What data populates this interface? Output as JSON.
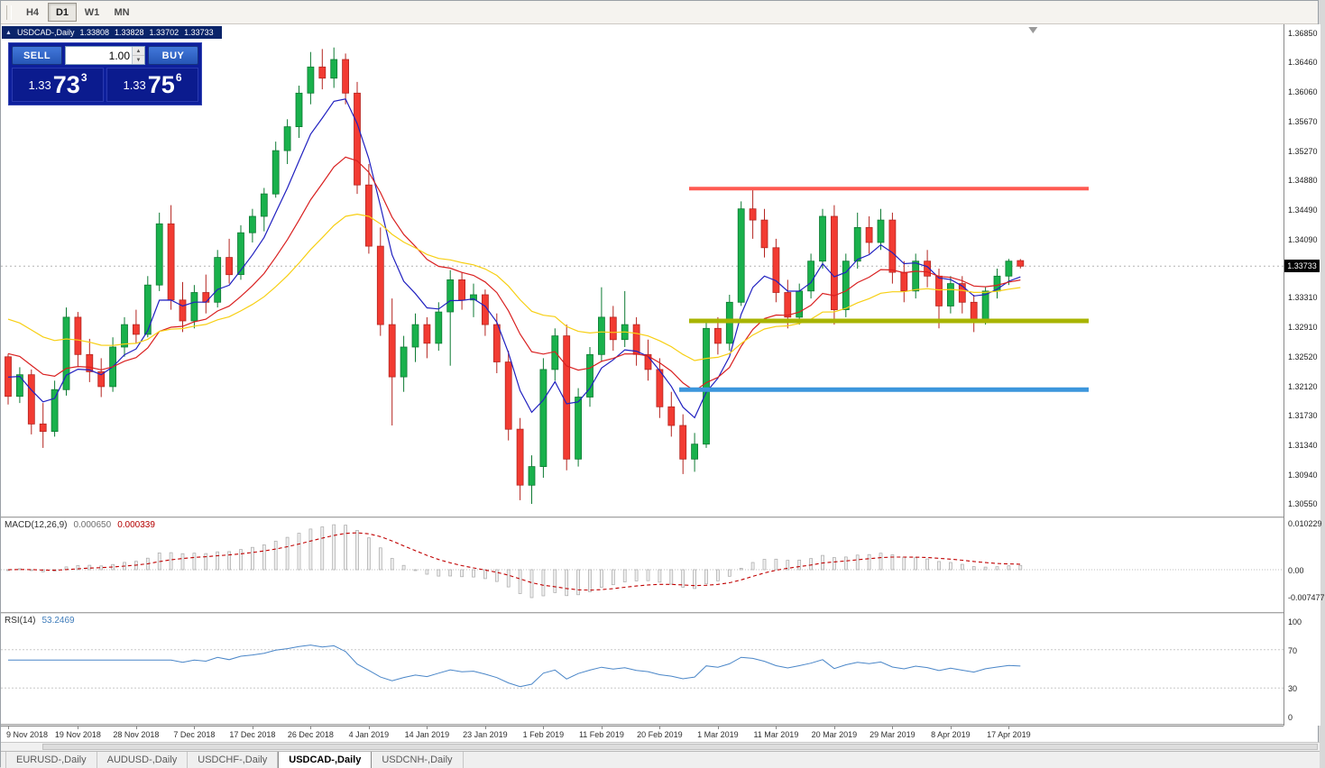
{
  "toolbar": {
    "timeframes": [
      "H4",
      "D1",
      "W1",
      "MN"
    ],
    "active_timeframe": "D1"
  },
  "chart_header": {
    "collapse_icon": "▲",
    "symbol": "USDCAD-,Daily",
    "open": "1.33808",
    "high": "1.33828",
    "low": "1.33702",
    "close": "1.33733"
  },
  "trade_panel": {
    "sell_label": "SELL",
    "buy_label": "BUY",
    "volume": "1.00",
    "spinner_up": "▲",
    "spinner_down": "▼",
    "sell_price": {
      "base": "1.33",
      "big": "73",
      "sup": "3"
    },
    "buy_price": {
      "base": "1.33",
      "big": "75",
      "sup": "6"
    }
  },
  "price_scale": {
    "labels": [
      "1.36850",
      "1.36460",
      "1.36060",
      "1.35670",
      "1.35270",
      "1.34880",
      "1.34490",
      "1.34090",
      "1.33310",
      "1.32910",
      "1.32520",
      "1.32120",
      "1.31730",
      "1.31340",
      "1.30940",
      "1.30550"
    ],
    "current_price": "1.33733"
  },
  "macd_panel": {
    "name": "MACD(12,26,9)",
    "main_value": "0.000650",
    "signal_value": "0.000339",
    "scale_top": "0.010229",
    "scale_zero": "0.00",
    "scale_bottom": "-0.007477"
  },
  "rsi_panel": {
    "name": "RSI(14)",
    "value": "53.2469",
    "scale": [
      "100",
      "70",
      "30",
      "0"
    ],
    "levels": [
      70,
      30
    ]
  },
  "tabs": [
    "EURUSD-,Daily",
    "AUDUSD-,Daily",
    "USDCHF-,Daily",
    "USDCAD-,Daily",
    "USDCNH-,Daily"
  ],
  "active_tab": "USDCAD-,Daily",
  "chart_data": {
    "type": "candlestick",
    "symbol": "USDCAD-",
    "timeframe": "Daily",
    "ylim": [
      1.3055,
      1.3685
    ],
    "current_price": 1.33733,
    "bull_color": "#19b14c",
    "bull_border": "#0e7a33",
    "bear_color": "#f23b32",
    "bear_border": "#b42520",
    "x_start": 8,
    "x_step": 12.9,
    "candles": [
      [
        1.3252,
        1.3256,
        1.3188,
        1.3199
      ],
      [
        1.3199,
        1.3238,
        1.319,
        1.3228
      ],
      [
        1.3228,
        1.3235,
        1.3148,
        1.3162
      ],
      [
        1.3162,
        1.319,
        1.313,
        1.3152
      ],
      [
        1.3152,
        1.322,
        1.3145,
        1.3208
      ],
      [
        1.3208,
        1.3318,
        1.32,
        1.3305
      ],
      [
        1.3305,
        1.3312,
        1.3238,
        1.3255
      ],
      [
        1.3255,
        1.3276,
        1.3218,
        1.3232
      ],
      [
        1.3232,
        1.325,
        1.3198,
        1.3212
      ],
      [
        1.3212,
        1.3278,
        1.3205,
        1.3265
      ],
      [
        1.3265,
        1.3305,
        1.3252,
        1.3295
      ],
      [
        1.3295,
        1.3315,
        1.327,
        1.3282
      ],
      [
        1.3282,
        1.336,
        1.3278,
        1.3348
      ],
      [
        1.3348,
        1.3445,
        1.334,
        1.343
      ],
      [
        1.343,
        1.3455,
        1.3315,
        1.3328
      ],
      [
        1.3328,
        1.3352,
        1.3285,
        1.33
      ],
      [
        1.33,
        1.3348,
        1.329,
        1.3338
      ],
      [
        1.3338,
        1.3362,
        1.331,
        1.3325
      ],
      [
        1.3325,
        1.3395,
        1.3318,
        1.3385
      ],
      [
        1.3385,
        1.341,
        1.335,
        1.3362
      ],
      [
        1.3362,
        1.3428,
        1.3355,
        1.3418
      ],
      [
        1.3418,
        1.345,
        1.3405,
        1.344
      ],
      [
        1.344,
        1.3478,
        1.342,
        1.347
      ],
      [
        1.347,
        1.354,
        1.3465,
        1.3528
      ],
      [
        1.3528,
        1.357,
        1.351,
        1.356
      ],
      [
        1.356,
        1.3615,
        1.3545,
        1.3605
      ],
      [
        1.3605,
        1.366,
        1.359,
        1.364
      ],
      [
        1.364,
        1.3664,
        1.361,
        1.3625
      ],
      [
        1.3625,
        1.3666,
        1.3612,
        1.365
      ],
      [
        1.365,
        1.3658,
        1.359,
        1.3605
      ],
      [
        1.3605,
        1.362,
        1.347,
        1.3482
      ],
      [
        1.3482,
        1.351,
        1.339,
        1.34
      ],
      [
        1.34,
        1.3425,
        1.328,
        1.3295
      ],
      [
        1.3295,
        1.333,
        1.316,
        1.3225
      ],
      [
        1.3225,
        1.328,
        1.3205,
        1.3265
      ],
      [
        1.3265,
        1.331,
        1.3245,
        1.3295
      ],
      [
        1.3295,
        1.3305,
        1.325,
        1.327
      ],
      [
        1.327,
        1.3325,
        1.326,
        1.3312
      ],
      [
        1.3312,
        1.3368,
        1.324,
        1.3355
      ],
      [
        1.3355,
        1.3365,
        1.3315,
        1.3328
      ],
      [
        1.3328,
        1.335,
        1.3305,
        1.3335
      ],
      [
        1.3335,
        1.3342,
        1.328,
        1.3295
      ],
      [
        1.3295,
        1.331,
        1.323,
        1.3245
      ],
      [
        1.3245,
        1.326,
        1.314,
        1.3155
      ],
      [
        1.3155,
        1.317,
        1.306,
        1.308
      ],
      [
        1.308,
        1.312,
        1.3055,
        1.3105
      ],
      [
        1.3105,
        1.325,
        1.309,
        1.3235
      ],
      [
        1.3235,
        1.329,
        1.322,
        1.328
      ],
      [
        1.328,
        1.3295,
        1.31,
        1.3115
      ],
      [
        1.3115,
        1.321,
        1.3105,
        1.3198
      ],
      [
        1.3198,
        1.3265,
        1.3185,
        1.3255
      ],
      [
        1.3255,
        1.3345,
        1.3245,
        1.3305
      ],
      [
        1.3305,
        1.332,
        1.326,
        1.3275
      ],
      [
        1.3275,
        1.334,
        1.3265,
        1.3295
      ],
      [
        1.3295,
        1.3305,
        1.324,
        1.3255
      ],
      [
        1.3255,
        1.3275,
        1.322,
        1.3235
      ],
      [
        1.3235,
        1.325,
        1.317,
        1.3185
      ],
      [
        1.3185,
        1.3205,
        1.3145,
        1.316
      ],
      [
        1.316,
        1.3175,
        1.3095,
        1.3115
      ],
      [
        1.3115,
        1.315,
        1.3098,
        1.3135
      ],
      [
        1.3135,
        1.33,
        1.313,
        1.329
      ],
      [
        1.329,
        1.3305,
        1.3255,
        1.327
      ],
      [
        1.327,
        1.3335,
        1.326,
        1.3325
      ],
      [
        1.3325,
        1.346,
        1.332,
        1.345
      ],
      [
        1.345,
        1.3475,
        1.341,
        1.3435
      ],
      [
        1.3435,
        1.345,
        1.3385,
        1.3398
      ],
      [
        1.3398,
        1.341,
        1.3325,
        1.3338
      ],
      [
        1.3338,
        1.3355,
        1.329,
        1.3305
      ],
      [
        1.3305,
        1.335,
        1.3295,
        1.334
      ],
      [
        1.334,
        1.339,
        1.333,
        1.338
      ],
      [
        1.338,
        1.345,
        1.337,
        1.344
      ],
      [
        1.344,
        1.3455,
        1.3295,
        1.3315
      ],
      [
        1.3315,
        1.339,
        1.3305,
        1.338
      ],
      [
        1.338,
        1.3445,
        1.337,
        1.3425
      ],
      [
        1.3425,
        1.344,
        1.339,
        1.3405
      ],
      [
        1.3405,
        1.345,
        1.3395,
        1.3435
      ],
      [
        1.3435,
        1.3445,
        1.335,
        1.3365
      ],
      [
        1.3365,
        1.338,
        1.3325,
        1.334
      ],
      [
        1.334,
        1.339,
        1.333,
        1.338
      ],
      [
        1.338,
        1.3395,
        1.3345,
        1.336
      ],
      [
        1.336,
        1.337,
        1.329,
        1.332
      ],
      [
        1.332,
        1.336,
        1.331,
        1.335
      ],
      [
        1.335,
        1.336,
        1.331,
        1.3325
      ],
      [
        1.3325,
        1.3335,
        1.3285,
        1.33
      ],
      [
        1.33,
        1.3345,
        1.3295,
        1.334
      ],
      [
        1.334,
        1.337,
        1.333,
        1.336
      ],
      [
        1.336,
        1.3383,
        1.3348,
        1.338
      ],
      [
        1.33808,
        1.33828,
        1.33702,
        1.33733
      ]
    ],
    "moving_averages": [
      {
        "name": "fast-ma",
        "period": 6,
        "seed": 1.3235,
        "color": "#2020c0"
      },
      {
        "name": "medium-ma",
        "period": 14,
        "seed": 1.3265,
        "color": "#d92020"
      },
      {
        "name": "slow-ma",
        "period": 28,
        "seed": 1.331,
        "color": "#f7cf13"
      }
    ],
    "hlines": [
      {
        "name": "resistance-line",
        "price": 1.3477,
        "x1": 763,
        "x2": 1206,
        "color": "#ff5a52",
        "width": 4
      },
      {
        "name": "support-mid-line",
        "price": 1.33,
        "x1": 763,
        "x2": 1206,
        "color": "#a8b400",
        "width": 5
      },
      {
        "name": "support-low-line",
        "price": 1.3208,
        "x1": 752,
        "x2": 1206,
        "color": "#3c96dc",
        "width": 5
      }
    ],
    "indicators": {
      "macd": {
        "fast": 12,
        "slow": 26,
        "signal": 9
      },
      "rsi": {
        "period": 14
      }
    },
    "date_label_indices": [
      0,
      6,
      11,
      16,
      21,
      26,
      31,
      36,
      41,
      46,
      51,
      56,
      61,
      66,
      71,
      76,
      81,
      86
    ],
    "date_labels": [
      "9 Nov 2018",
      "19 Nov 2018",
      "28 Nov 2018",
      "7 Dec 2018",
      "17 Dec 2018",
      "26 Dec 2018",
      "4 Jan 2019",
      "14 Jan 2019",
      "23 Jan 2019",
      "1 Feb 2019",
      "11 Feb 2019",
      "20 Feb 2019",
      "1 Mar 2019",
      "11 Mar 2019",
      "20 Mar 2019",
      "29 Mar 2019",
      "8 Apr 2019",
      "17 Apr 2019"
    ]
  }
}
